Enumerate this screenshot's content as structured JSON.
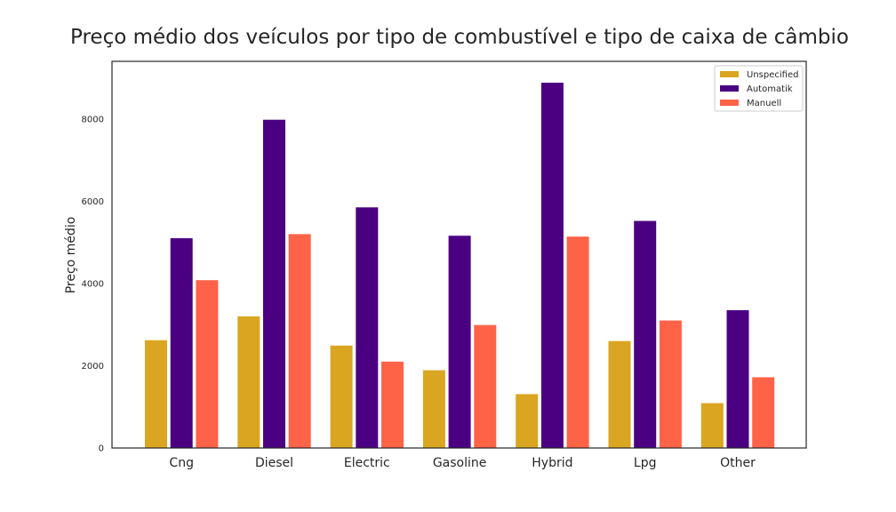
{
  "chart_data": {
    "type": "bar",
    "title": "Preço médio dos veículos por tipo de combustível e tipo de caixa de câmbio",
    "xlabel": "",
    "ylabel": "Preço médio",
    "ylim": [
      0,
      9400
    ],
    "yticks": [
      0,
      2000,
      4000,
      6000,
      8000
    ],
    "grid": false,
    "legend_position": "top-right",
    "categories": [
      "Cng",
      "Diesel",
      "Electric",
      "Gasoline",
      "Hybrid",
      "Lpg",
      "Other"
    ],
    "series": [
      {
        "name": "Unspecified",
        "color": "#daa520",
        "values": [
          2620,
          3200,
          2490,
          1890,
          1310,
          2600,
          1090
        ]
      },
      {
        "name": "Automatik",
        "color": "#4b0082",
        "values": [
          5100,
          7980,
          5850,
          5160,
          8880,
          5520,
          3350
        ]
      },
      {
        "name": "Manuell",
        "color": "#ff6347",
        "values": [
          4080,
          5200,
          2100,
          2990,
          5140,
          3100,
          1720
        ]
      }
    ]
  }
}
